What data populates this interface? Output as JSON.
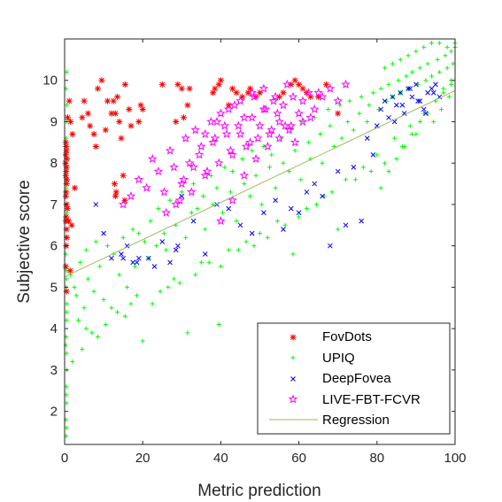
{
  "chart_data": {
    "type": "scatter",
    "title": "",
    "xlabel": "Metric prediction",
    "ylabel": "Subjective score",
    "xlim": [
      0,
      100
    ],
    "ylim": [
      1.2,
      11
    ],
    "xticks": [
      "0",
      "20",
      "40",
      "60",
      "80",
      "100"
    ],
    "yticks": [
      "2",
      "3",
      "4",
      "5",
      "6",
      "7",
      "8",
      "9",
      "10"
    ],
    "grid": false,
    "legend_position": "bottom-right",
    "series": [
      {
        "name": "FovDots",
        "marker": "asterisk",
        "color": "#ff0000",
        "x": [
          0.3,
          0.4,
          0.5,
          0.3,
          0.6,
          0.2,
          0.5,
          0.4,
          0.3,
          0.6,
          0.5,
          0.4,
          0.3,
          0.5,
          0.7,
          0.4,
          0.3,
          0.5,
          0.6,
          0.4,
          0.3,
          0.5,
          1.2,
          1.5,
          0.8,
          2.0,
          1.0,
          1.8,
          1.4,
          2.6,
          4.5,
          6.0,
          7.5,
          8.0,
          9.5,
          11.0,
          12.5,
          13.0,
          13.5,
          14.0,
          15.5,
          16.5,
          5.0,
          6.5,
          8.5,
          10.5,
          12.0,
          14.5,
          17.0,
          15.0,
          12.8,
          13.2,
          13.0,
          15.4,
          19.0,
          19.5,
          20.0,
          25.0,
          29.0,
          30.0,
          32.0,
          28.5,
          30.5,
          31.5,
          38.0,
          38.5,
          39.5,
          40.0,
          43.0,
          42.0,
          44.0,
          45.5,
          47.0,
          47.5,
          49.0,
          50.0,
          55.0,
          56.0,
          58.0,
          59.0,
          60.0,
          61.0,
          62.0,
          63.0,
          65.0,
          67.0,
          70.0
        ],
        "y": [
          8.5,
          8.4,
          8.3,
          8.2,
          8.1,
          8.0,
          7.9,
          7.8,
          7.7,
          7.6,
          7.5,
          7.3,
          7.2,
          7.0,
          6.9,
          6.7,
          6.6,
          6.4,
          6.2,
          6.0,
          5.5,
          4.9,
          9.5,
          9.0,
          9.1,
          8.7,
          6.6,
          6.5,
          5.4,
          7.4,
          9.1,
          9.2,
          8.7,
          8.4,
          10.0,
          9.5,
          9.5,
          9.2,
          9.6,
          9.0,
          9.9,
          9.3,
          9.5,
          8.9,
          9.8,
          8.8,
          9.2,
          8.6,
          8.9,
          7.7,
          7.5,
          7.3,
          7.2,
          7.1,
          9.0,
          9.4,
          9.3,
          9.9,
          9.9,
          9.8,
          9.8,
          9.0,
          9.1,
          9.4,
          9.7,
          9.8,
          9.9,
          10.0,
          9.8,
          9.4,
          9.7,
          9.6,
          9.7,
          9.8,
          9.6,
          9.7,
          9.6,
          9.7,
          9.9,
          10.0,
          9.9,
          9.8,
          9.7,
          9.6,
          9.6,
          9.9,
          9.2
        ]
      },
      {
        "name": "UPIQ",
        "marker": "plus",
        "color": "#00ff00",
        "x": [
          0.5,
          0.4,
          0.6,
          0.5,
          0.4,
          0.3,
          0.5,
          0.4,
          0.6,
          0.5,
          0.4,
          0.3,
          0.5,
          0.4,
          0.6,
          0.5,
          0.4,
          0.5,
          0.6,
          0.4,
          0.5,
          0.3,
          0.4,
          0.5,
          0.6,
          0.4,
          0.5,
          0.3,
          0.4,
          0.5,
          1.5,
          2.5,
          3.0,
          4.0,
          5.0,
          5.5,
          6.0,
          7.5,
          8.0,
          9.0,
          10.0,
          11.0,
          12.5,
          14.0,
          15.0,
          16.0,
          17.5,
          18.0,
          19.0,
          20.5,
          21.5,
          22.0,
          23.5,
          24.0,
          25.5,
          26.0,
          27.0,
          28.5,
          30.0,
          31.0,
          32.5,
          33.0,
          34.0,
          35.5,
          36.0,
          37.5,
          38.0,
          39.0,
          40.5,
          41.0,
          42.5,
          43.0,
          44.0,
          45.5,
          46.0,
          47.5,
          48.0,
          49.0,
          50.5,
          51.0,
          52.5,
          53.0,
          54.0,
          55.5,
          56.0,
          57.5,
          58.0,
          59.0,
          60.5,
          61.0,
          62.5,
          63.0,
          64.0,
          65.5,
          66.0,
          67.5,
          68.0,
          69.0,
          70.5,
          71.0,
          72.5,
          73.0,
          74.0,
          75.5,
          76.0,
          77.5,
          78.0,
          79.0,
          80.5,
          81.0,
          82.5,
          83.0,
          84.0,
          85.5,
          86.0,
          87.5,
          88.0,
          89.0,
          90.5,
          91.0,
          92.5,
          93.0,
          94.0,
          95.5,
          96.0,
          97.5,
          98.0,
          99.0,
          99.5,
          100.0,
          3.5,
          5.5,
          8.5,
          12.0,
          15.5,
          18.5,
          22.5,
          26.5,
          29.5,
          33.5,
          37.0,
          40.0,
          44.5,
          48.5,
          52.0,
          56.5,
          60.0,
          64.5,
          68.5,
          72.0,
          76.5,
          80.0,
          84.5,
          88.5,
          92.0,
          95.0,
          97.0,
          99.0,
          2.0,
          4.5,
          7.0,
          10.5,
          13.5,
          17.0,
          20.0,
          24.5,
          28.0,
          31.5,
          35.0,
          39.5,
          42.0,
          46.5,
          50.0,
          54.5,
          58.5,
          62.0,
          66.5,
          70.0,
          74.5,
          78.5,
          82.0,
          86.5,
          90.0,
          94.5,
          96.5,
          98.5,
          81.0,
          83.0,
          85.0,
          87.0,
          89.0,
          91.0,
          93.0,
          95.0,
          97.0,
          99.0,
          82.0,
          84.0,
          86.0,
          88.0,
          90.0,
          92.0,
          94.0,
          96.0,
          98.0,
          100.0
        ],
        "y": [
          10.2,
          9.8,
          9.4,
          9.0,
          8.6,
          8.2,
          7.8,
          7.4,
          7.0,
          6.6,
          6.2,
          5.8,
          5.4,
          5.0,
          4.6,
          4.2,
          3.8,
          3.4,
          3.0,
          2.6,
          2.2,
          1.8,
          1.4,
          5.2,
          6.8,
          7.6,
          4.4,
          3.6,
          2.4,
          1.6,
          5.3,
          5.0,
          4.8,
          5.6,
          4.5,
          5.9,
          5.2,
          4.9,
          6.1,
          5.5,
          4.7,
          6.0,
          5.8,
          5.3,
          6.2,
          5.0,
          6.4,
          5.5,
          6.3,
          6.1,
          5.7,
          6.6,
          6.0,
          6.9,
          6.3,
          5.9,
          7.1,
          6.5,
          7.3,
          6.2,
          6.8,
          7.5,
          6.9,
          7.2,
          6.4,
          7.7,
          7.0,
          7.4,
          6.8,
          7.9,
          7.3,
          7.8,
          6.6,
          8.1,
          7.5,
          7.2,
          8.3,
          7.7,
          7.0,
          8.4,
          7.9,
          8.2,
          7.4,
          8.6,
          8.0,
          7.8,
          8.8,
          8.3,
          7.6,
          9.0,
          8.5,
          8.1,
          9.1,
          8.7,
          8.0,
          9.3,
          8.9,
          8.4,
          9.4,
          8.6,
          9.0,
          9.5,
          8.8,
          9.2,
          9.6,
          9.0,
          9.4,
          9.7,
          9.3,
          9.8,
          9.5,
          9.9,
          9.6,
          10.0,
          9.7,
          10.1,
          9.8,
          10.2,
          9.9,
          10.3,
          10.0,
          10.4,
          10.1,
          10.5,
          10.2,
          10.6,
          10.3,
          10.7,
          10.4,
          10.8,
          4.2,
          4.0,
          3.8,
          4.5,
          4.3,
          4.8,
          4.6,
          5.0,
          5.1,
          5.3,
          5.6,
          5.5,
          5.9,
          6.0,
          6.2,
          6.5,
          6.7,
          7.0,
          7.3,
          7.6,
          7.9,
          8.2,
          8.6,
          8.9,
          9.2,
          9.5,
          9.8,
          10.0,
          3.2,
          3.5,
          3.9,
          4.1,
          4.4,
          4.6,
          3.7,
          4.9,
          5.2,
          3.9,
          5.6,
          4.1,
          5.9,
          6.1,
          6.3,
          6.6,
          5.8,
          6.9,
          7.2,
          6.4,
          7.6,
          7.8,
          8.0,
          8.4,
          8.7,
          9.0,
          9.3,
          9.6,
          7.4,
          7.8,
          8.1,
          8.4,
          8.7,
          9.0,
          9.2,
          9.5,
          9.7,
          9.9,
          10.3,
          10.4,
          10.5,
          10.6,
          10.7,
          10.8,
          10.9,
          10.9,
          10.8,
          10.9
        ]
      },
      {
        "name": "DeepFovea",
        "marker": "x",
        "color": "#0000ff",
        "x": [
          8.0,
          10.0,
          12.0,
          14.5,
          15.0,
          16.0,
          17.5,
          18.5,
          19.0,
          21.5,
          23.0,
          25.0,
          27.0,
          28.5,
          29.0,
          30.0,
          33.0,
          36.0,
          39.0,
          42.0,
          45.0,
          48.0,
          51.0,
          54.0,
          56.0,
          58.0,
          60.0,
          62.0,
          64.0,
          66.0,
          68.0,
          70.0,
          72.0,
          74.0,
          76.0,
          77.5,
          79.0,
          80.0,
          81.0,
          82.0,
          83.0,
          84.0,
          85.0,
          86.0,
          87.0,
          88.0,
          89.0,
          90.0,
          91.0,
          92.0,
          93.0,
          94.0,
          95.0,
          96.0,
          84.5,
          86.5,
          88.5,
          90.5,
          92.5,
          94.5
        ],
        "y": [
          7.0,
          6.3,
          5.7,
          5.8,
          5.7,
          6.0,
          5.6,
          5.6,
          5.7,
          5.7,
          5.5,
          6.1,
          5.6,
          5.9,
          6.0,
          7.2,
          6.6,
          5.8,
          7.0,
          6.9,
          6.5,
          6.3,
          6.8,
          7.1,
          6.4,
          6.9,
          6.8,
          7.3,
          7.5,
          7.2,
          6.0,
          7.8,
          6.5,
          7.9,
          6.6,
          8.6,
          8.2,
          8.9,
          9.3,
          9.5,
          9.1,
          9.6,
          9.4,
          9.7,
          9.2,
          9.8,
          9.6,
          9.9,
          9.5,
          9.3,
          9.7,
          9.8,
          9.9,
          9.6,
          9.0,
          9.4,
          9.8,
          9.5,
          9.2,
          9.7
        ]
      },
      {
        "name": "LIVE-FBT-FCVR",
        "marker": "pentagram",
        "color": "#ff00ff",
        "x": [
          15.0,
          17.0,
          19.0,
          21.0,
          22.5,
          24.0,
          25.5,
          27.0,
          28.0,
          29.5,
          31.0,
          32.0,
          33.5,
          35.0,
          36.0,
          37.5,
          38.5,
          40.0,
          41.0,
          42.5,
          43.5,
          45.0,
          46.0,
          47.5,
          48.5,
          50.0,
          51.0,
          52.5,
          53.5,
          55.0,
          56.0,
          57.5,
          58.5,
          60.0,
          61.0,
          62.5,
          64.0,
          66.0,
          68.0,
          70.0,
          26.0,
          28.5,
          30.5,
          32.5,
          34.5,
          36.5,
          38.0,
          39.5,
          41.5,
          43.0,
          44.5,
          46.5,
          48.0,
          49.5,
          51.5,
          53.0,
          54.5,
          56.5,
          59.0,
          63.0,
          30.0,
          33.0,
          36.0,
          39.0,
          42.0,
          45.0,
          48.0,
          51.0,
          54.0,
          57.0,
          40.0,
          43.0,
          46.0,
          49.0,
          52.0,
          55.0,
          58.0,
          61.0,
          65.0,
          72.0
        ],
        "y": [
          7.0,
          7.2,
          7.6,
          7.4,
          8.1,
          7.8,
          7.3,
          8.3,
          7.9,
          7.1,
          8.6,
          8.0,
          8.8,
          8.4,
          7.7,
          9.0,
          8.6,
          9.2,
          8.9,
          8.3,
          9.4,
          8.7,
          9.1,
          8.5,
          9.6,
          8.9,
          9.3,
          8.7,
          9.5,
          9.0,
          9.4,
          8.8,
          9.6,
          9.2,
          9.5,
          9.7,
          9.3,
          9.6,
          9.8,
          9.5,
          6.8,
          7.0,
          7.6,
          7.3,
          8.2,
          7.8,
          8.5,
          8.0,
          8.7,
          8.2,
          8.9,
          8.4,
          9.1,
          8.6,
          9.3,
          8.8,
          9.2,
          8.9,
          8.5,
          9.1,
          7.5,
          7.9,
          8.7,
          9.0,
          9.3,
          9.5,
          9.7,
          9.8,
          9.6,
          9.9,
          6.6,
          7.1,
          7.7,
          8.1,
          8.4,
          8.6,
          8.9,
          9.0,
          9.7,
          9.9
        ]
      }
    ],
    "regression": {
      "name": "Regression",
      "color": "#9bbb59",
      "x": [
        0,
        100
      ],
      "y": [
        5.25,
        9.75
      ]
    }
  }
}
